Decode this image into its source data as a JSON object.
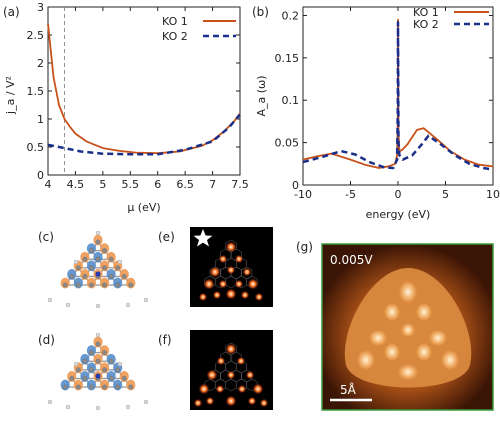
{
  "panels": {
    "a": "(a)",
    "b": "(b)",
    "c": "(c)",
    "d": "(d)",
    "e": "(e)",
    "f": "(f)",
    "g": "(g)"
  },
  "colors": {
    "ko1": "#c8511a",
    "ko2": "#1a2f8a",
    "orange_orbital": "#ef9a55",
    "blue_orbital": "#5a8fcc",
    "stm_border": "#3a9a3a"
  },
  "chart_data": [
    {
      "type": "line",
      "panel": "a",
      "xlabel": "μ (eV)",
      "ylabel": "j_a / V²",
      "xlim": [
        4,
        7.5
      ],
      "ylim": [
        0,
        3
      ],
      "xticks": [
        4,
        4.5,
        5,
        5.5,
        6,
        6.5,
        7,
        7.5
      ],
      "xtick_labels": [
        "4",
        "4.5",
        "5",
        "5.5",
        "6",
        "6.5",
        "7",
        "7.5"
      ],
      "yticks": [
        0,
        0.5,
        1,
        1.5,
        2,
        2.5,
        3
      ],
      "ytick_labels": [
        "0",
        "0.5",
        "1",
        "1.5",
        "2",
        "2.5",
        "3"
      ],
      "vline_x": 4.3,
      "legend": "top-right",
      "series": [
        {
          "name": "KO 1",
          "style": "solid",
          "x": [
            4.0,
            4.1,
            4.2,
            4.3,
            4.4,
            4.5,
            4.7,
            5.0,
            5.3,
            5.6,
            6.0,
            6.4,
            6.8,
            7.0,
            7.2,
            7.4,
            7.5
          ],
          "y": [
            2.7,
            1.75,
            1.25,
            1.0,
            0.86,
            0.74,
            0.6,
            0.48,
            0.43,
            0.4,
            0.39,
            0.42,
            0.52,
            0.62,
            0.77,
            0.97,
            1.1
          ]
        },
        {
          "name": "KO 2",
          "style": "dashed",
          "x": [
            4.0,
            4.3,
            4.6,
            5.0,
            5.5,
            6.0,
            6.5,
            7.0,
            7.3,
            7.5
          ],
          "y": [
            0.54,
            0.48,
            0.42,
            0.38,
            0.37,
            0.37,
            0.45,
            0.6,
            0.85,
            1.08
          ]
        }
      ]
    },
    {
      "type": "line",
      "panel": "b",
      "xlabel": "energy (eV)",
      "ylabel": "A_a (ω)",
      "xlim": [
        -10,
        10
      ],
      "ylim": [
        0,
        0.21
      ],
      "xticks": [
        -10,
        -5,
        0,
        5,
        10
      ],
      "xtick_labels": [
        "-10",
        "-5",
        "0",
        "5",
        "10"
      ],
      "yticks": [
        0,
        0.05,
        0.1,
        0.15,
        0.2
      ],
      "ytick_labels": [
        "0",
        "0.05",
        "0.1",
        "0.15",
        "0.2"
      ],
      "legend": "top-right",
      "series": [
        {
          "name": "KO 1",
          "style": "solid",
          "x": [
            -10,
            -8.5,
            -7,
            -5,
            -3.5,
            -2,
            -1,
            -0.3,
            -0.1,
            -0.02,
            0.0,
            0.05,
            0.15,
            0.4,
            1,
            2,
            2.7,
            4,
            5.5,
            7,
            8.5,
            10
          ],
          "y": [
            0.03,
            0.034,
            0.037,
            0.03,
            0.024,
            0.02,
            0.022,
            0.025,
            0.035,
            0.08,
            0.195,
            0.06,
            0.04,
            0.041,
            0.048,
            0.065,
            0.067,
            0.055,
            0.04,
            0.03,
            0.024,
            0.022
          ]
        },
        {
          "name": "KO 2",
          "style": "dashed",
          "x": [
            -10,
            -8,
            -6,
            -4.5,
            -3,
            -1.5,
            -0.5,
            -0.1,
            -0.02,
            0.0,
            0.05,
            0.15,
            0.5,
            1.5,
            2.5,
            3.2,
            4.5,
            6,
            7.5,
            9,
            10
          ],
          "y": [
            0.027,
            0.033,
            0.04,
            0.036,
            0.027,
            0.021,
            0.02,
            0.03,
            0.09,
            0.192,
            0.05,
            0.035,
            0.03,
            0.035,
            0.048,
            0.058,
            0.048,
            0.035,
            0.025,
            0.02,
            0.018
          ]
        }
      ]
    }
  ],
  "stm": {
    "bias": "0.005V",
    "scale": "5Å"
  }
}
